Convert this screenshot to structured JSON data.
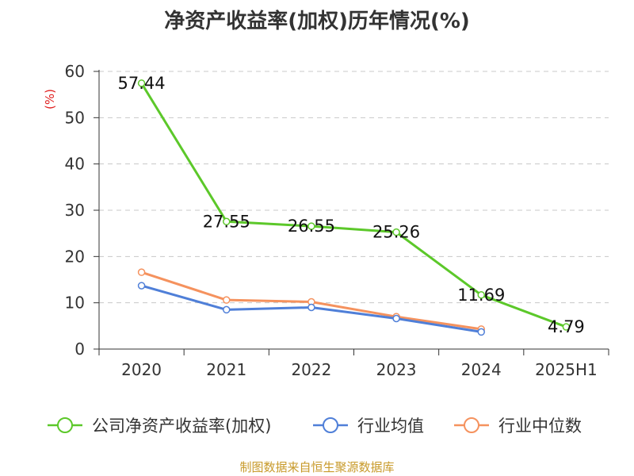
{
  "chart_data": {
    "type": "line",
    "title": "净资产收益率(加权)历年情况(%)",
    "ylabel": "(%)",
    "xlabel": "",
    "categories": [
      "2020",
      "2021",
      "2022",
      "2023",
      "2024",
      "2025H1"
    ],
    "ylim": [
      0,
      60
    ],
    "yticks": [
      0,
      10,
      20,
      30,
      40,
      50,
      60
    ],
    "grid": true,
    "legend_position": "bottom",
    "series": [
      {
        "name": "公司净资产收益率(加权)",
        "color": "#5cc82a",
        "values": [
          57.44,
          27.55,
          26.55,
          25.26,
          11.69,
          4.79
        ],
        "labels": [
          "57.44",
          "27.55",
          "26.55",
          "25.26",
          "11.69",
          "4.79"
        ]
      },
      {
        "name": "行业均值",
        "color": "#4f7fd8",
        "values": [
          13.7,
          8.5,
          9.0,
          6.6,
          3.7,
          null
        ]
      },
      {
        "name": "行业中位数",
        "color": "#f5925e",
        "values": [
          16.6,
          10.6,
          10.2,
          7.0,
          4.3,
          null
        ]
      }
    ]
  },
  "source": "制图数据来自恒生聚源数据库"
}
